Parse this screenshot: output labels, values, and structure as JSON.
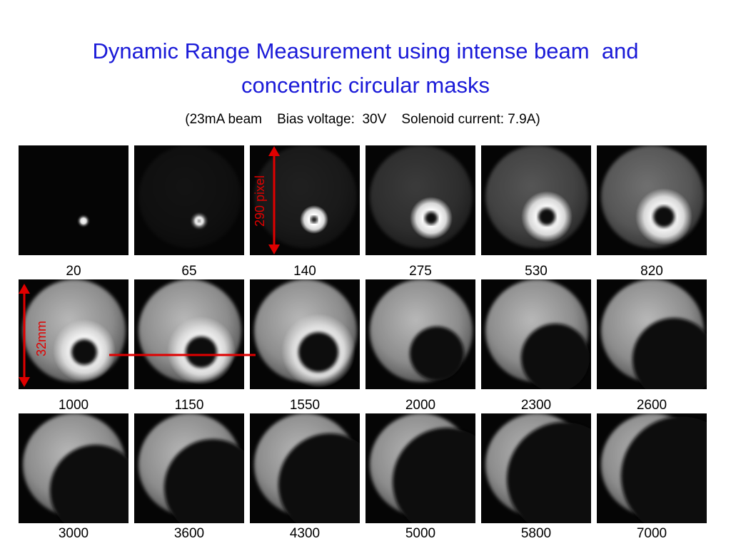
{
  "title": [
    "Dynamic Range Measurement using intense beam  and",
    "concentric circular masks"
  ],
  "subtitle": "(23mA beam    Bias voltage:  30V    Solenoid current: 7.9A)",
  "panels": [
    {
      "label": 20
    },
    {
      "label": 65
    },
    {
      "label": 140
    },
    {
      "label": 275
    },
    {
      "label": 530
    },
    {
      "label": 820
    },
    {
      "label": 1000
    },
    {
      "label": 1150
    },
    {
      "label": 1550
    },
    {
      "label": 2000
    },
    {
      "label": 2300
    },
    {
      "label": 2600
    },
    {
      "label": 3000
    },
    {
      "label": 3600
    },
    {
      "label": 4300
    },
    {
      "label": 5000
    },
    {
      "label": 5800
    },
    {
      "label": 7000
    }
  ],
  "annotations": {
    "pixel_size": "290 pixel",
    "mm_size": "32mm"
  }
}
